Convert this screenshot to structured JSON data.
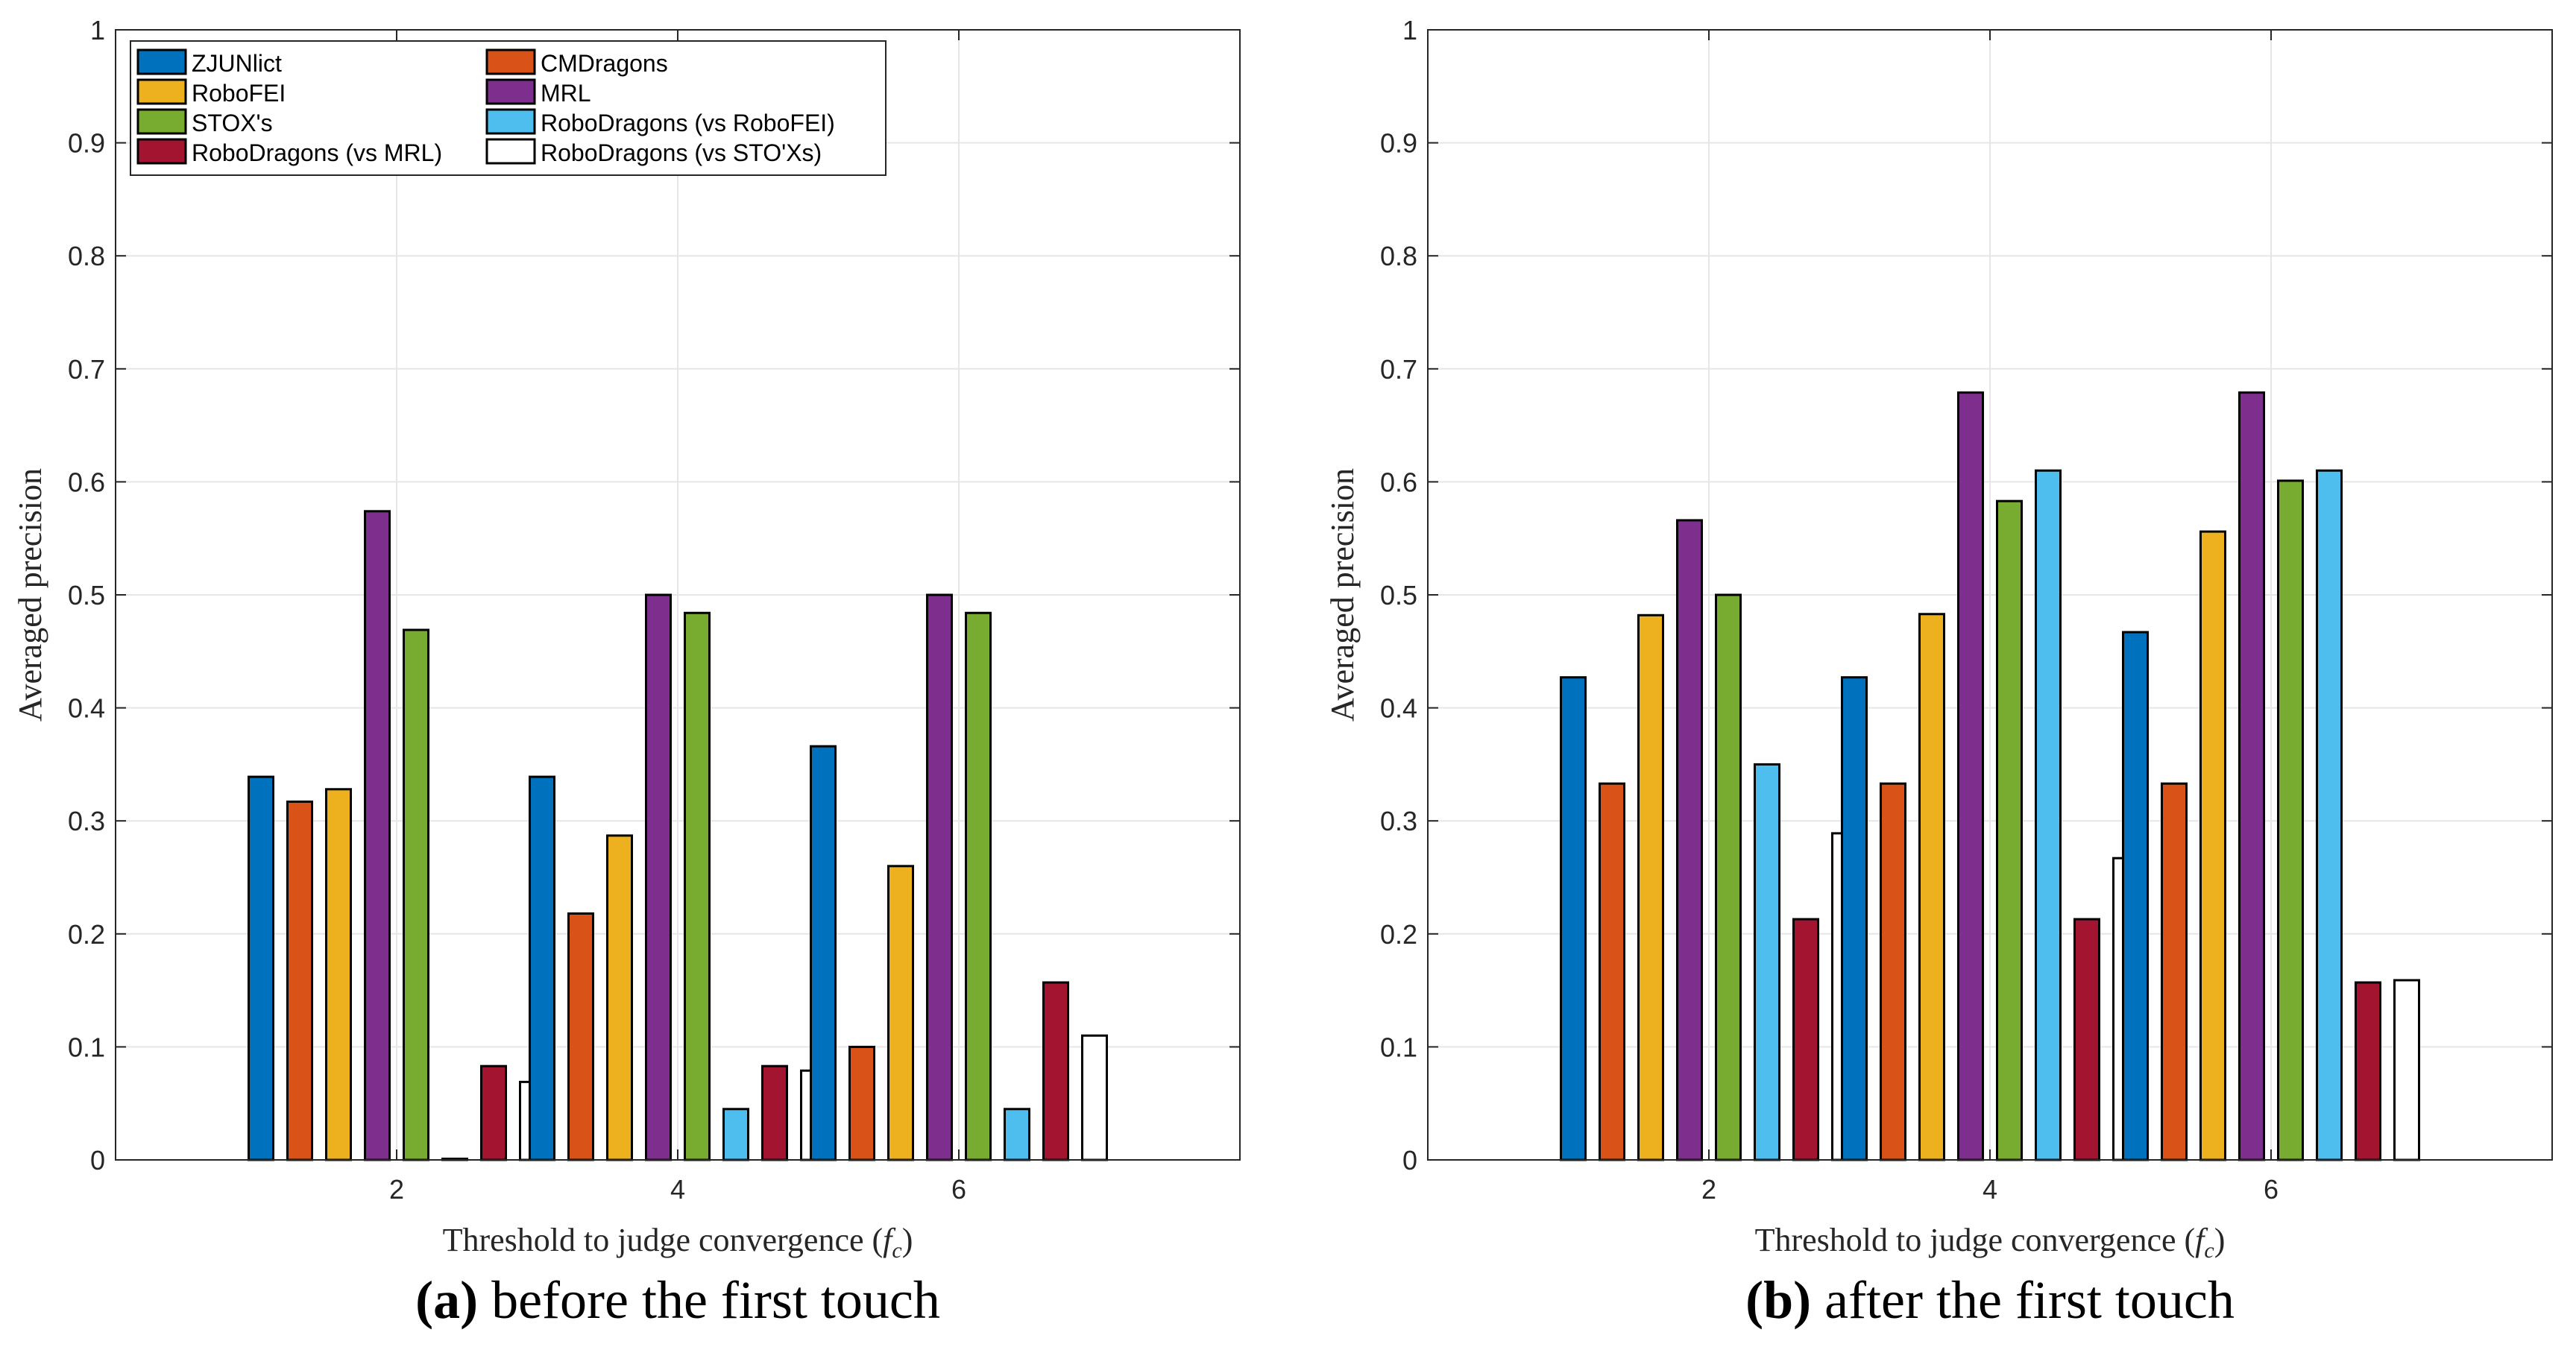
{
  "series_colors": [
    "#0072BD",
    "#D95319",
    "#EDB120",
    "#7E2F8E",
    "#77AC30",
    "#4DBEEE",
    "#A2142F",
    "#FFFFFF"
  ],
  "chart_data": [
    {
      "type": "bar",
      "caption_letter": "(a)",
      "caption_text": " before the first touch",
      "xlabel_main": "Threshold to judge convergence (",
      "xlabel_var": "f",
      "xlabel_sub": "c",
      "xlabel_end": ")",
      "ylabel": "Averaged precision",
      "ylim": [
        0,
        1
      ],
      "yticks": [
        "0",
        "0.1",
        "0.2",
        "0.3",
        "0.4",
        "0.5",
        "0.6",
        "0.7",
        "0.8",
        "0.9",
        "1"
      ],
      "categories": [
        "2",
        "4",
        "6"
      ],
      "legend_position": "top-left",
      "grid": true,
      "series": [
        {
          "name": "ZJUNlict",
          "values": [
            0.339,
            0.339,
            0.366
          ]
        },
        {
          "name": "CMDragons",
          "values": [
            0.317,
            0.218,
            0.1
          ]
        },
        {
          "name": "RoboFEI",
          "values": [
            0.328,
            0.287,
            0.26
          ]
        },
        {
          "name": "MRL",
          "values": [
            0.574,
            0.5,
            0.5
          ]
        },
        {
          "name": "STOX's",
          "values": [
            0.469,
            0.484,
            0.484
          ]
        },
        {
          "name": "RoboDragons (vs RoboFEI)",
          "values": [
            0.001,
            0.045,
            0.045
          ]
        },
        {
          "name": "RoboDragons (vs MRL)",
          "values": [
            0.083,
            0.083,
            0.157
          ]
        },
        {
          "name": "RoboDragons (vs STO'Xs)",
          "values": [
            0.069,
            0.079,
            0.11
          ]
        }
      ]
    },
    {
      "type": "bar",
      "caption_letter": "(b)",
      "caption_text": " after the first touch",
      "xlabel_main": "Threshold to judge convergence (",
      "xlabel_var": "f",
      "xlabel_sub": "c",
      "xlabel_end": ")",
      "ylabel": "Averaged precision",
      "ylim": [
        0,
        1
      ],
      "yticks": [
        "0",
        "0.1",
        "0.2",
        "0.3",
        "0.4",
        "0.5",
        "0.6",
        "0.7",
        "0.8",
        "0.9",
        "1"
      ],
      "categories": [
        "2",
        "4",
        "6"
      ],
      "grid": true,
      "series": [
        {
          "name": "ZJUNlict",
          "values": [
            0.427,
            0.427,
            0.467
          ]
        },
        {
          "name": "CMDragons",
          "values": [
            0.333,
            0.333,
            0.333
          ]
        },
        {
          "name": "RoboFEI",
          "values": [
            0.482,
            0.483,
            0.556
          ]
        },
        {
          "name": "MRL",
          "values": [
            0.566,
            0.679,
            0.679
          ]
        },
        {
          "name": "STOX's",
          "values": [
            0.5,
            0.583,
            0.601
          ]
        },
        {
          "name": "RoboDragons (vs RoboFEI)",
          "values": [
            0.35,
            0.61,
            0.61
          ]
        },
        {
          "name": "RoboDragons (vs MRL)",
          "values": [
            0.213,
            0.213,
            0.157
          ]
        },
        {
          "name": "RoboDragons (vs STO'Xs)",
          "values": [
            0.289,
            0.267,
            0.159
          ]
        }
      ]
    }
  ]
}
